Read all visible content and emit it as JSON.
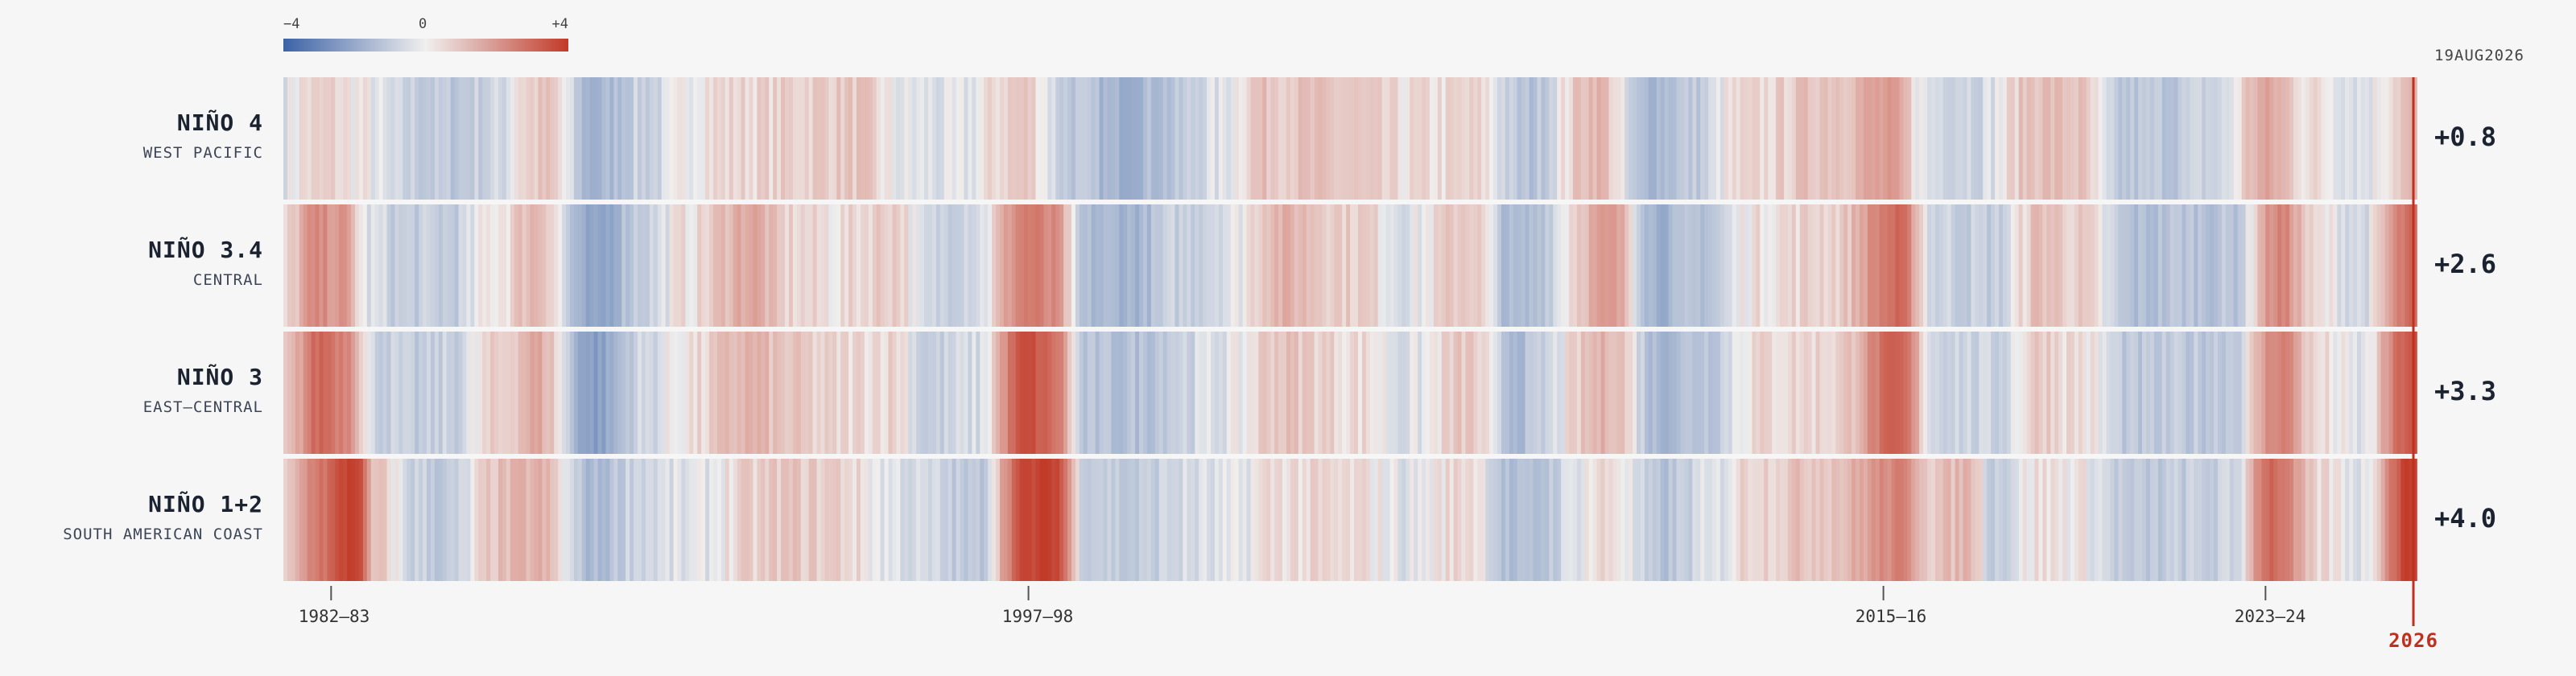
{
  "legend": {
    "min": "−4",
    "mid": "0",
    "max": "+4"
  },
  "date_stamp": "19AUG2026",
  "rows": [
    {
      "name": "NIÑO 4",
      "region": "WEST PACIFIC",
      "current": "+0.8"
    },
    {
      "name": "NIÑO 3.4",
      "region": "CENTRAL",
      "current": "+2.6"
    },
    {
      "name": "NIÑO 3",
      "region": "EAST–CENTRAL",
      "current": "+3.3"
    },
    {
      "name": "NIÑO 1+2",
      "region": "SOUTH AMERICAN COAST",
      "current": "+4.0"
    }
  ],
  "axis": {
    "ticks": [
      "1982–83",
      "1997–98",
      "2015–16",
      "2023–24"
    ],
    "now": "2026"
  },
  "colors": {
    "cold": "#3b63a6",
    "neutral": "#f0efee",
    "warm": "#c23a28",
    "now_marker": "#c0301e"
  },
  "chart_data": {
    "type": "heatmap",
    "title": "",
    "x": {
      "start_year": 1982.0,
      "end_year": 2026.63,
      "ticks": [
        1983.0,
        1997.6,
        2015.5,
        2023.5
      ]
    },
    "color_range": [
      -4,
      4
    ],
    "series": [
      {
        "name": "NIÑO 4",
        "anomalies": [
          {
            "t": 1982.0,
            "v": -0.2
          },
          {
            "t": 1982.5,
            "v": 0.3
          },
          {
            "t": 1983.0,
            "v": 0.4
          },
          {
            "t": 1983.5,
            "v": 0.1
          },
          {
            "t": 1984.5,
            "v": -0.6
          },
          {
            "t": 1985.5,
            "v": -0.8
          },
          {
            "t": 1986.5,
            "v": -0.5
          },
          {
            "t": 1987.0,
            "v": 0.4
          },
          {
            "t": 1987.5,
            "v": 0.6
          },
          {
            "t": 1988.5,
            "v": -1.4
          },
          {
            "t": 1989.5,
            "v": -0.6
          },
          {
            "t": 1991.0,
            "v": 0.3
          },
          {
            "t": 1992.0,
            "v": 0.4
          },
          {
            "t": 1994.0,
            "v": 0.6
          },
          {
            "t": 1995.0,
            "v": -0.2
          },
          {
            "t": 1996.0,
            "v": -0.3
          },
          {
            "t": 1997.5,
            "v": 0.6
          },
          {
            "t": 1998.5,
            "v": -0.8
          },
          {
            "t": 1999.5,
            "v": -1.4
          },
          {
            "t": 2000.5,
            "v": -1.0
          },
          {
            "t": 2001.5,
            "v": -0.3
          },
          {
            "t": 2002.5,
            "v": 0.7
          },
          {
            "t": 2004.0,
            "v": 0.6
          },
          {
            "t": 2005.5,
            "v": 0.2
          },
          {
            "t": 2007.0,
            "v": 0.3
          },
          {
            "t": 2008.0,
            "v": -1.0
          },
          {
            "t": 2009.5,
            "v": 1.0
          },
          {
            "t": 2010.5,
            "v": -1.2
          },
          {
            "t": 2011.5,
            "v": -0.8
          },
          {
            "t": 2012.5,
            "v": 0.2
          },
          {
            "t": 2014.5,
            "v": 0.8
          },
          {
            "t": 2015.6,
            "v": 1.4
          },
          {
            "t": 2016.5,
            "v": -0.3
          },
          {
            "t": 2017.5,
            "v": -0.4
          },
          {
            "t": 2018.7,
            "v": 0.8
          },
          {
            "t": 2019.5,
            "v": 0.7
          },
          {
            "t": 2020.5,
            "v": -0.9
          },
          {
            "t": 2021.5,
            "v": -0.8
          },
          {
            "t": 2022.5,
            "v": -0.5
          },
          {
            "t": 2023.5,
            "v": 1.2
          },
          {
            "t": 2024.5,
            "v": 0.2
          },
          {
            "t": 2025.5,
            "v": -0.2
          },
          {
            "t": 2026.6,
            "v": 0.8
          }
        ]
      },
      {
        "name": "NIÑO 3.4",
        "anomalies": [
          {
            "t": 1982.0,
            "v": 0.2
          },
          {
            "t": 1982.7,
            "v": 1.8
          },
          {
            "t": 1983.2,
            "v": 1.6
          },
          {
            "t": 1983.8,
            "v": -0.3
          },
          {
            "t": 1984.5,
            "v": -0.7
          },
          {
            "t": 1985.5,
            "v": -0.7
          },
          {
            "t": 1986.5,
            "v": 0.2
          },
          {
            "t": 1987.3,
            "v": 1.0
          },
          {
            "t": 1988.5,
            "v": -2.0
          },
          {
            "t": 1989.5,
            "v": -0.6
          },
          {
            "t": 1990.5,
            "v": 0.2
          },
          {
            "t": 1991.8,
            "v": 1.3
          },
          {
            "t": 1992.5,
            "v": 0.4
          },
          {
            "t": 1993.5,
            "v": 0.2
          },
          {
            "t": 1994.8,
            "v": 0.6
          },
          {
            "t": 1995.5,
            "v": -0.6
          },
          {
            "t": 1996.5,
            "v": -0.3
          },
          {
            "t": 1997.6,
            "v": 2.3
          },
          {
            "t": 1998.1,
            "v": 1.8
          },
          {
            "t": 1998.8,
            "v": -1.2
          },
          {
            "t": 1999.8,
            "v": -1.3
          },
          {
            "t": 2000.8,
            "v": -0.6
          },
          {
            "t": 2001.8,
            "v": -0.2
          },
          {
            "t": 2002.8,
            "v": 1.0
          },
          {
            "t": 2004.5,
            "v": 0.5
          },
          {
            "t": 2005.5,
            "v": -0.2
          },
          {
            "t": 2006.8,
            "v": 0.7
          },
          {
            "t": 2007.8,
            "v": -1.3
          },
          {
            "t": 2009.8,
            "v": 1.4
          },
          {
            "t": 2010.8,
            "v": -1.4
          },
          {
            "t": 2011.8,
            "v": -0.9
          },
          {
            "t": 2012.8,
            "v": 0.2
          },
          {
            "t": 2014.5,
            "v": 0.5
          },
          {
            "t": 2015.8,
            "v": 2.6
          },
          {
            "t": 2016.6,
            "v": -0.5
          },
          {
            "t": 2017.8,
            "v": -0.7
          },
          {
            "t": 2018.8,
            "v": 0.8
          },
          {
            "t": 2019.5,
            "v": 0.5
          },
          {
            "t": 2020.8,
            "v": -1.1
          },
          {
            "t": 2021.8,
            "v": -0.9
          },
          {
            "t": 2022.8,
            "v": -0.9
          },
          {
            "t": 2023.8,
            "v": 2.0
          },
          {
            "t": 2024.6,
            "v": 0.1
          },
          {
            "t": 2025.5,
            "v": -0.4
          },
          {
            "t": 2026.6,
            "v": 2.6
          }
        ]
      },
      {
        "name": "NIÑO 3",
        "anomalies": [
          {
            "t": 1982.0,
            "v": 0.4
          },
          {
            "t": 1982.8,
            "v": 2.8
          },
          {
            "t": 1983.3,
            "v": 2.2
          },
          {
            "t": 1983.9,
            "v": -0.5
          },
          {
            "t": 1984.8,
            "v": -0.8
          },
          {
            "t": 1985.5,
            "v": -0.6
          },
          {
            "t": 1986.5,
            "v": 0.4
          },
          {
            "t": 1987.3,
            "v": 1.2
          },
          {
            "t": 1988.5,
            "v": -2.0
          },
          {
            "t": 1989.5,
            "v": -0.5
          },
          {
            "t": 1990.5,
            "v": 0.2
          },
          {
            "t": 1991.8,
            "v": 1.0
          },
          {
            "t": 1992.5,
            "v": 0.6
          },
          {
            "t": 1993.5,
            "v": 0.3
          },
          {
            "t": 1994.8,
            "v": 0.4
          },
          {
            "t": 1995.5,
            "v": -0.7
          },
          {
            "t": 1996.5,
            "v": -0.4
          },
          {
            "t": 1997.6,
            "v": 3.4
          },
          {
            "t": 1998.1,
            "v": 2.6
          },
          {
            "t": 1998.8,
            "v": -1.0
          },
          {
            "t": 1999.8,
            "v": -1.0
          },
          {
            "t": 2000.8,
            "v": -0.5
          },
          {
            "t": 2001.8,
            "v": -0.2
          },
          {
            "t": 2002.8,
            "v": 0.7
          },
          {
            "t": 2004.5,
            "v": 0.3
          },
          {
            "t": 2005.5,
            "v": -0.3
          },
          {
            "t": 2006.8,
            "v": 0.6
          },
          {
            "t": 2007.8,
            "v": -1.1
          },
          {
            "t": 2009.8,
            "v": 1.0
          },
          {
            "t": 2010.8,
            "v": -1.2
          },
          {
            "t": 2011.8,
            "v": -0.8
          },
          {
            "t": 2012.8,
            "v": 0.3
          },
          {
            "t": 2014.5,
            "v": 0.4
          },
          {
            "t": 2015.8,
            "v": 2.8
          },
          {
            "t": 2016.6,
            "v": -0.4
          },
          {
            "t": 2017.8,
            "v": -0.6
          },
          {
            "t": 2018.8,
            "v": 0.6
          },
          {
            "t": 2019.5,
            "v": 0.3
          },
          {
            "t": 2020.8,
            "v": -0.9
          },
          {
            "t": 2021.8,
            "v": -0.8
          },
          {
            "t": 2022.8,
            "v": -0.7
          },
          {
            "t": 2023.8,
            "v": 2.2
          },
          {
            "t": 2024.6,
            "v": 0.2
          },
          {
            "t": 2025.5,
            "v": -0.3
          },
          {
            "t": 2026.6,
            "v": 3.3
          }
        ]
      },
      {
        "name": "NIÑO 1+2",
        "anomalies": [
          {
            "t": 1982.0,
            "v": 0.3
          },
          {
            "t": 1982.8,
            "v": 2.5
          },
          {
            "t": 1983.5,
            "v": 4.0
          },
          {
            "t": 1983.9,
            "v": 0.6
          },
          {
            "t": 1984.8,
            "v": -0.6
          },
          {
            "t": 1985.5,
            "v": -0.8
          },
          {
            "t": 1986.5,
            "v": 0.7
          },
          {
            "t": 1987.3,
            "v": 1.0
          },
          {
            "t": 1988.5,
            "v": -1.2
          },
          {
            "t": 1989.5,
            "v": -0.4
          },
          {
            "t": 1990.5,
            "v": -0.3
          },
          {
            "t": 1991.8,
            "v": 0.4
          },
          {
            "t": 1992.5,
            "v": 0.6
          },
          {
            "t": 1993.5,
            "v": 0.5
          },
          {
            "t": 1994.8,
            "v": -0.2
          },
          {
            "t": 1995.5,
            "v": -0.5
          },
          {
            "t": 1996.5,
            "v": -0.9
          },
          {
            "t": 1997.6,
            "v": 3.6
          },
          {
            "t": 1998.1,
            "v": 3.9
          },
          {
            "t": 1998.8,
            "v": -0.5
          },
          {
            "t": 1999.8,
            "v": -0.8
          },
          {
            "t": 2000.8,
            "v": -0.4
          },
          {
            "t": 2001.8,
            "v": -0.3
          },
          {
            "t": 2002.8,
            "v": 0.3
          },
          {
            "t": 2004.5,
            "v": 0.2
          },
          {
            "t": 2005.5,
            "v": -0.2
          },
          {
            "t": 2006.8,
            "v": 0.4
          },
          {
            "t": 2007.8,
            "v": -1.2
          },
          {
            "t": 2009.8,
            "v": 0.3
          },
          {
            "t": 2010.8,
            "v": -1.0
          },
          {
            "t": 2011.8,
            "v": -0.4
          },
          {
            "t": 2012.8,
            "v": 0.5
          },
          {
            "t": 2014.5,
            "v": 0.8
          },
          {
            "t": 2015.8,
            "v": 2.0
          },
          {
            "t": 2016.6,
            "v": 0.6
          },
          {
            "t": 2017.3,
            "v": 1.0
          },
          {
            "t": 2017.8,
            "v": -0.6
          },
          {
            "t": 2018.8,
            "v": 0.2
          },
          {
            "t": 2019.5,
            "v": 0.1
          },
          {
            "t": 2020.8,
            "v": -0.9
          },
          {
            "t": 2021.8,
            "v": -0.7
          },
          {
            "t": 2022.8,
            "v": -0.6
          },
          {
            "t": 2023.6,
            "v": 2.8
          },
          {
            "t": 2024.6,
            "v": 0.3
          },
          {
            "t": 2025.5,
            "v": -0.2
          },
          {
            "t": 2026.6,
            "v": 4.0
          }
        ]
      }
    ]
  }
}
